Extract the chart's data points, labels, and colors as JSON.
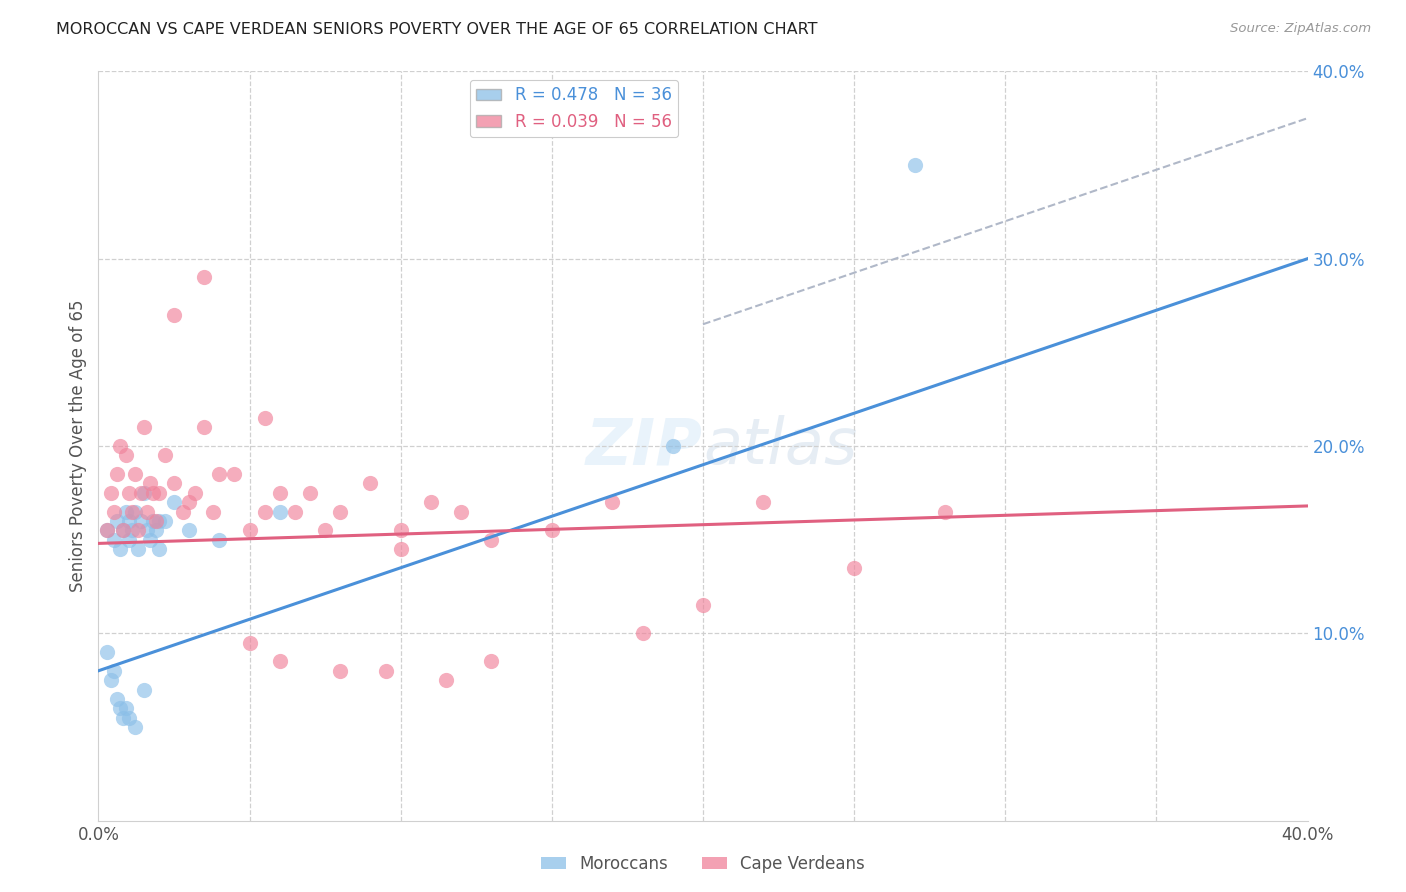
{
  "title": "MOROCCAN VS CAPE VERDEAN SENIORS POVERTY OVER THE AGE OF 65 CORRELATION CHART",
  "source": "Source: ZipAtlas.com",
  "ylabel": "Seniors Poverty Over the Age of 65",
  "xlim": [
    0.0,
    0.4
  ],
  "ylim": [
    0.0,
    0.4
  ],
  "yticks_right": [
    0.1,
    0.2,
    0.3,
    0.4
  ],
  "background_color": "#ffffff",
  "grid_color": "#d0d0d0",
  "moroccan_color": "#8bbfe8",
  "capeverdean_color": "#f0829a",
  "moroccan_line_color": "#4a90d9",
  "capeverdean_line_color": "#e06080",
  "diagonal_color": "#b0b8c8",
  "legend_moroccan_label": "R = 0.478   N = 36",
  "legend_capeverdean_label": "R = 0.039   N = 56",
  "moroccan_regression": [
    0.0,
    0.08,
    0.4,
    0.3
  ],
  "capeverdean_regression": [
    0.0,
    0.148,
    0.4,
    0.168
  ],
  "diagonal_line": [
    0.2,
    0.265,
    0.4,
    0.375
  ],
  "moroccan_x": [
    0.003,
    0.005,
    0.006,
    0.007,
    0.008,
    0.009,
    0.01,
    0.01,
    0.011,
    0.012,
    0.013,
    0.014,
    0.015,
    0.016,
    0.017,
    0.018,
    0.019,
    0.02,
    0.022,
    0.025,
    0.003,
    0.004,
    0.005,
    0.006,
    0.007,
    0.008,
    0.009,
    0.01,
    0.012,
    0.015,
    0.02,
    0.03,
    0.04,
    0.06,
    0.27,
    0.19
  ],
  "moroccan_y": [
    0.155,
    0.15,
    0.16,
    0.145,
    0.155,
    0.165,
    0.16,
    0.15,
    0.155,
    0.165,
    0.145,
    0.16,
    0.175,
    0.155,
    0.15,
    0.16,
    0.155,
    0.145,
    0.16,
    0.17,
    0.09,
    0.075,
    0.08,
    0.065,
    0.06,
    0.055,
    0.06,
    0.055,
    0.05,
    0.07,
    0.16,
    0.155,
    0.15,
    0.165,
    0.35,
    0.2
  ],
  "capeverdean_x": [
    0.003,
    0.004,
    0.005,
    0.006,
    0.007,
    0.008,
    0.009,
    0.01,
    0.011,
    0.012,
    0.013,
    0.014,
    0.015,
    0.016,
    0.017,
    0.018,
    0.019,
    0.02,
    0.022,
    0.025,
    0.028,
    0.03,
    0.032,
    0.035,
    0.038,
    0.04,
    0.045,
    0.05,
    0.055,
    0.06,
    0.065,
    0.07,
    0.08,
    0.09,
    0.1,
    0.11,
    0.12,
    0.13,
    0.15,
    0.17,
    0.18,
    0.2,
    0.22,
    0.25,
    0.28,
    0.05,
    0.06,
    0.08,
    0.1,
    0.13,
    0.025,
    0.035,
    0.055,
    0.075,
    0.095,
    0.115
  ],
  "capeverdean_y": [
    0.155,
    0.175,
    0.165,
    0.185,
    0.2,
    0.155,
    0.195,
    0.175,
    0.165,
    0.185,
    0.155,
    0.175,
    0.21,
    0.165,
    0.18,
    0.175,
    0.16,
    0.175,
    0.195,
    0.18,
    0.165,
    0.17,
    0.175,
    0.21,
    0.165,
    0.185,
    0.185,
    0.155,
    0.165,
    0.175,
    0.165,
    0.175,
    0.165,
    0.18,
    0.155,
    0.17,
    0.165,
    0.15,
    0.155,
    0.17,
    0.1,
    0.115,
    0.17,
    0.135,
    0.165,
    0.095,
    0.085,
    0.08,
    0.145,
    0.085,
    0.27,
    0.29,
    0.215,
    0.155,
    0.08,
    0.075
  ]
}
